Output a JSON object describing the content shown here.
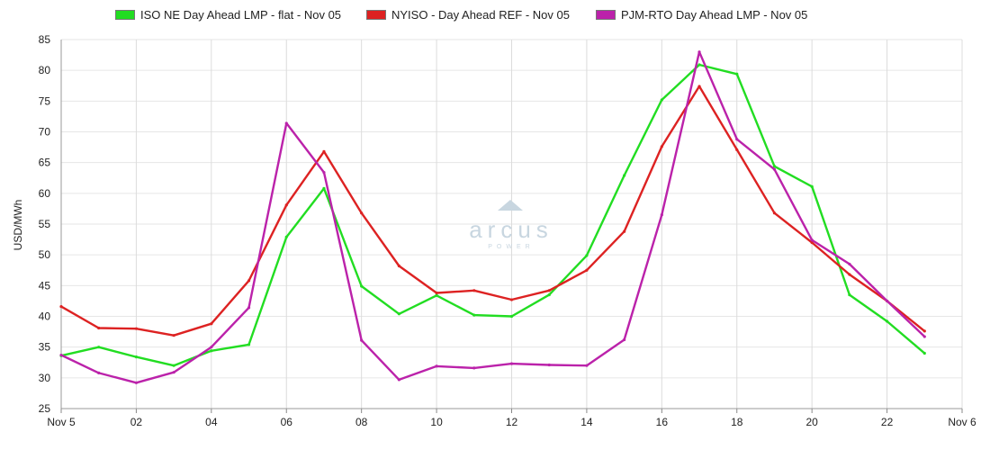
{
  "chart_data": {
    "type": "line",
    "ylabel": "USD/MWh",
    "ylim": [
      25,
      85
    ],
    "yticks": [
      25,
      30,
      35,
      40,
      45,
      50,
      55,
      60,
      65,
      70,
      75,
      80,
      85
    ],
    "x": [
      0,
      1,
      2,
      3,
      4,
      5,
      6,
      7,
      8,
      9,
      10,
      11,
      12,
      13,
      14,
      15,
      16,
      17,
      18,
      19,
      20,
      21,
      22,
      23
    ],
    "xlim": [
      0,
      24
    ],
    "xticks": [
      {
        "x": 0,
        "label": "Nov 5"
      },
      {
        "x": 2,
        "label": "02"
      },
      {
        "x": 4,
        "label": "04"
      },
      {
        "x": 6,
        "label": "06"
      },
      {
        "x": 8,
        "label": "08"
      },
      {
        "x": 10,
        "label": "10"
      },
      {
        "x": 12,
        "label": "12"
      },
      {
        "x": 14,
        "label": "14"
      },
      {
        "x": 16,
        "label": "16"
      },
      {
        "x": 18,
        "label": "18"
      },
      {
        "x": 20,
        "label": "20"
      },
      {
        "x": 22,
        "label": "22"
      },
      {
        "x": 24,
        "label": "Nov 6"
      }
    ],
    "grid": true,
    "legend_position": "top",
    "series": [
      {
        "name": "ISO NE Day Ahead LMP - flat - Nov 05",
        "color": "#22dd22",
        "values": [
          33.6,
          35.0,
          33.4,
          32.0,
          34.4,
          35.4,
          52.9,
          60.8,
          44.9,
          40.4,
          43.4,
          40.2,
          40.0,
          43.5,
          49.9,
          62.9,
          75.2,
          80.9,
          79.4,
          64.4,
          61.1,
          43.5,
          39.2,
          34.0
        ]
      },
      {
        "name": "NYISO - Day Ahead REF - Nov 05",
        "color": "#dd2222",
        "values": [
          41.6,
          38.1,
          38.0,
          36.9,
          38.8,
          45.8,
          58.1,
          66.8,
          56.8,
          48.2,
          43.8,
          44.2,
          42.7,
          44.2,
          47.5,
          53.8,
          67.6,
          77.4,
          67.1,
          56.8,
          52.0,
          46.8,
          42.5,
          37.6
        ]
      },
      {
        "name": "PJM-RTO Day Ahead LMP - Nov 05",
        "color": "#bb22aa",
        "values": [
          33.7,
          30.8,
          29.2,
          30.9,
          35.0,
          41.4,
          71.4,
          63.4,
          36.1,
          29.7,
          31.9,
          31.6,
          32.3,
          32.1,
          32.0,
          36.2,
          56.5,
          83.0,
          68.8,
          63.9,
          52.4,
          48.5,
          42.5,
          36.7
        ]
      }
    ],
    "watermark": {
      "logo": "arcus",
      "sub": "POWER",
      "color": "#c8d6e0"
    }
  }
}
